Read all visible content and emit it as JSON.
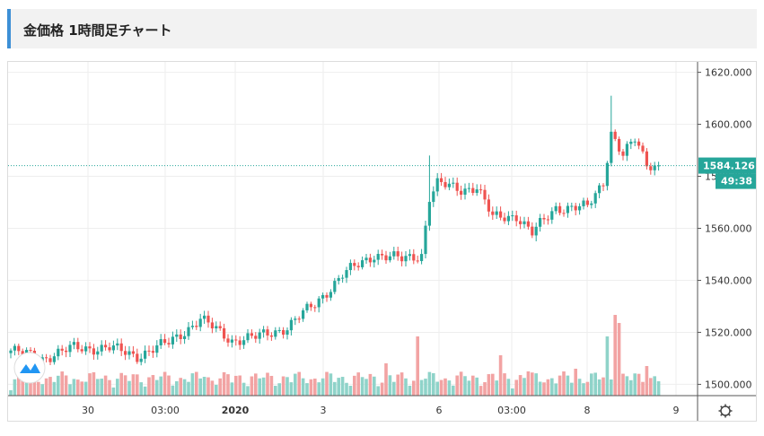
{
  "header": {
    "title": "金価格 1時間足チャート"
  },
  "chart_data": {
    "type": "candlestick",
    "title": "金価格 1時間足チャート",
    "ylim": [
      1496,
      1624
    ],
    "y_ticks": [
      "1620.000",
      "1600.000",
      "1580.000",
      "1560.000",
      "1540.000",
      "1520.000",
      "1500.000"
    ],
    "y_tick_values": [
      1620,
      1600,
      1580,
      1560,
      1540,
      1520,
      1500
    ],
    "x_ticks": [
      {
        "label": "30",
        "bold": false
      },
      {
        "label": "03:00",
        "bold": false
      },
      {
        "label": "2020",
        "bold": true
      },
      {
        "label": "3",
        "bold": false
      },
      {
        "label": "6",
        "bold": false
      },
      {
        "label": "03:00",
        "bold": false
      },
      {
        "label": "8",
        "bold": false
      },
      {
        "label": "9",
        "bold": false
      }
    ],
    "current_price": "1584.126",
    "countdown": "49:38",
    "colors": {
      "up": "#26a69a",
      "down": "#ef5350",
      "vol_up": "#8fd3c9",
      "vol_down": "#f2a3a3",
      "price_line": "#26a69a"
    },
    "anchors": [
      [
        0,
        1513
      ],
      [
        8,
        1510
      ],
      [
        16,
        1514
      ],
      [
        25,
        1514
      ],
      [
        32,
        1511
      ],
      [
        40,
        1516
      ],
      [
        48,
        1525
      ],
      [
        56,
        1517
      ],
      [
        62,
        1518
      ],
      [
        70,
        1522
      ],
      [
        77,
        1531
      ],
      [
        84,
        1542
      ],
      [
        92,
        1550
      ],
      [
        99,
        1548
      ],
      [
        104,
        1550
      ],
      [
        106,
        1572
      ],
      [
        108,
        1577
      ],
      [
        114,
        1575
      ],
      [
        118,
        1576
      ],
      [
        122,
        1564
      ],
      [
        128,
        1565
      ],
      [
        132,
        1558
      ],
      [
        138,
        1568
      ],
      [
        146,
        1568
      ],
      [
        150,
        1578
      ],
      [
        152,
        1597
      ],
      [
        155,
        1588
      ],
      [
        158,
        1594
      ],
      [
        161,
        1585
      ],
      [
        164,
        1584
      ]
    ],
    "spikes": [
      {
        "i": 106,
        "high": 1588
      },
      {
        "i": 152,
        "high": 1611
      },
      {
        "i": 133,
        "low": 1555
      }
    ],
    "volume_highlights": [
      {
        "i": 103,
        "v": 22
      },
      {
        "i": 124,
        "v": 15
      },
      {
        "i": 143,
        "v": 10
      },
      {
        "i": 151,
        "v": 22
      },
      {
        "i": 153,
        "v": 30
      },
      {
        "i": 154,
        "v": 27
      },
      {
        "i": 161,
        "v": 11
      },
      {
        "i": 49,
        "v": 7
      },
      {
        "i": 95,
        "v": 12
      },
      {
        "i": 131,
        "v": 9
      }
    ],
    "candle_count": 165
  },
  "icons": {
    "logo": "tradingview-cloud-icon",
    "settings": "gear-icon"
  }
}
